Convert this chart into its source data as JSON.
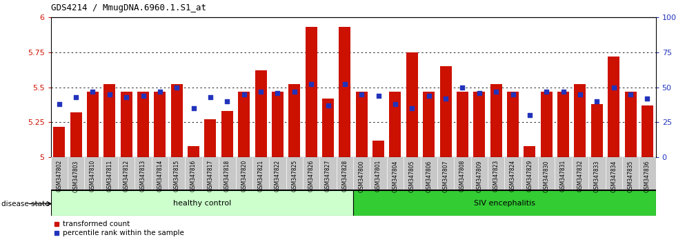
{
  "title": "GDS4214 / MmugDNA.6960.1.S1_at",
  "samples": [
    "GSM347802",
    "GSM347803",
    "GSM347810",
    "GSM347811",
    "GSM347812",
    "GSM347813",
    "GSM347814",
    "GSM347815",
    "GSM347816",
    "GSM347817",
    "GSM347818",
    "GSM347820",
    "GSM347821",
    "GSM347822",
    "GSM347825",
    "GSM347826",
    "GSM347827",
    "GSM347828",
    "GSM347800",
    "GSM347801",
    "GSM347804",
    "GSM347805",
    "GSM347806",
    "GSM347807",
    "GSM347808",
    "GSM347809",
    "GSM347823",
    "GSM347824",
    "GSM347829",
    "GSM347830",
    "GSM347831",
    "GSM347832",
    "GSM347833",
    "GSM347834",
    "GSM347835",
    "GSM347836"
  ],
  "bar_values": [
    5.22,
    5.32,
    5.47,
    5.52,
    5.47,
    5.47,
    5.47,
    5.52,
    5.08,
    5.27,
    5.33,
    5.47,
    5.62,
    5.47,
    5.52,
    5.93,
    5.42,
    5.93,
    5.47,
    5.12,
    5.47,
    5.75,
    5.47,
    5.65,
    5.47,
    5.47,
    5.52,
    5.47,
    5.08,
    5.47,
    5.47,
    5.52,
    5.38,
    5.72,
    5.47,
    5.37
  ],
  "percentile_values": [
    38,
    43,
    47,
    45,
    43,
    44,
    47,
    50,
    35,
    43,
    40,
    45,
    47,
    46,
    47,
    52,
    37,
    52,
    45,
    44,
    38,
    35,
    44,
    42,
    50,
    46,
    47,
    45,
    30,
    47,
    47,
    45,
    40,
    50,
    45,
    42
  ],
  "ylim_left": [
    5.0,
    6.0
  ],
  "ylim_right": [
    0,
    100
  ],
  "yticks_left": [
    5.0,
    5.25,
    5.5,
    5.75,
    6.0
  ],
  "ytick_labels_left": [
    "5",
    "5.25",
    "5.5",
    "5.75",
    "6"
  ],
  "yticks_right": [
    0,
    25,
    50,
    75,
    100
  ],
  "ytick_labels_right": [
    "0",
    "25",
    "50",
    "75",
    "100%"
  ],
  "n_healthy": 18,
  "bar_color": "#cc1100",
  "dot_color": "#2233bb",
  "healthy_label": "healthy control",
  "siv_label": "SIV encephalitis",
  "healthy_color": "#ccffcc",
  "siv_color": "#33cc33",
  "legend_bar": "transformed count",
  "legend_dot": "percentile rank within the sample",
  "disease_state_label": "disease state",
  "background_color": "#ffffff",
  "xtick_bg_color": "#c8c8c8"
}
